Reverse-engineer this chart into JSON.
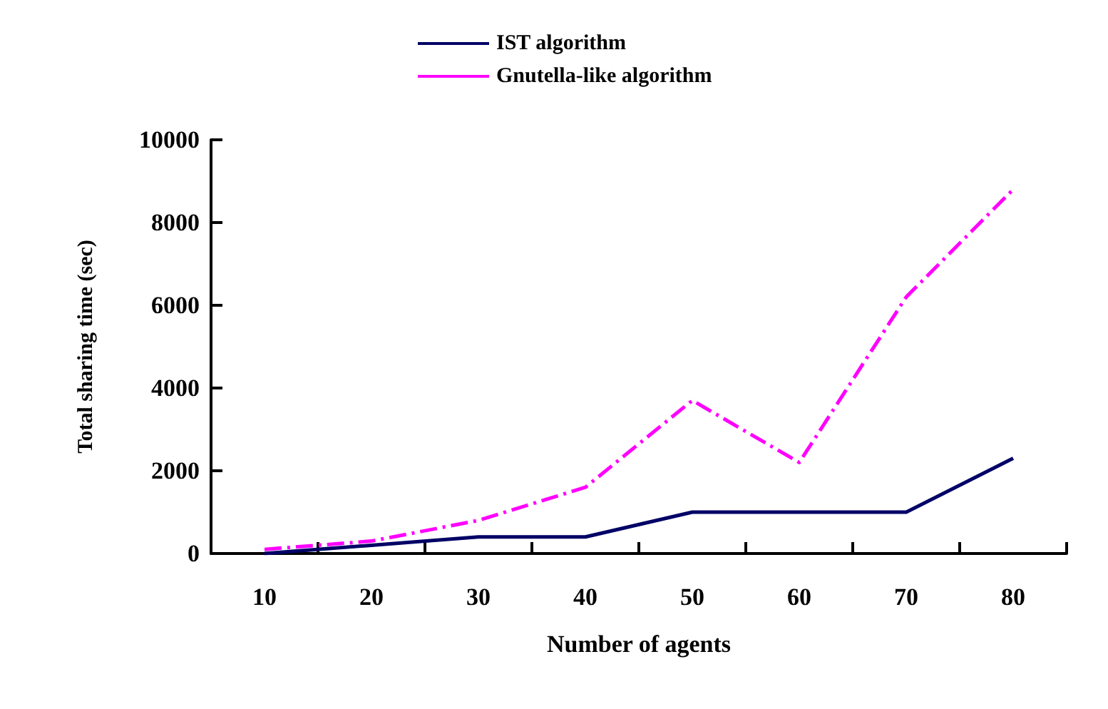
{
  "chart_data": {
    "type": "line",
    "xlabel": "Number of agents",
    "ylabel": "Total sharing time (sec)",
    "categories": [
      "10",
      "20",
      "30",
      "40",
      "50",
      "60",
      "70",
      "80"
    ],
    "series": [
      {
        "name": "IST algorithm",
        "color": "#000066",
        "line_style": "solid",
        "values": [
          0,
          200,
          400,
          400,
          1000,
          1000,
          1000,
          2300
        ]
      },
      {
        "name": "Gnutella-like algorithm",
        "color": "#ff00ff",
        "line_style": "dashed",
        "values": [
          100,
          300,
          800,
          1600,
          3700,
          2200,
          6200,
          8800
        ]
      }
    ],
    "ylim": [
      0,
      10000
    ],
    "yticks": [
      0,
      2000,
      4000,
      6000,
      8000,
      10000
    ],
    "grid": false,
    "legend": "top",
    "marker": "none"
  }
}
